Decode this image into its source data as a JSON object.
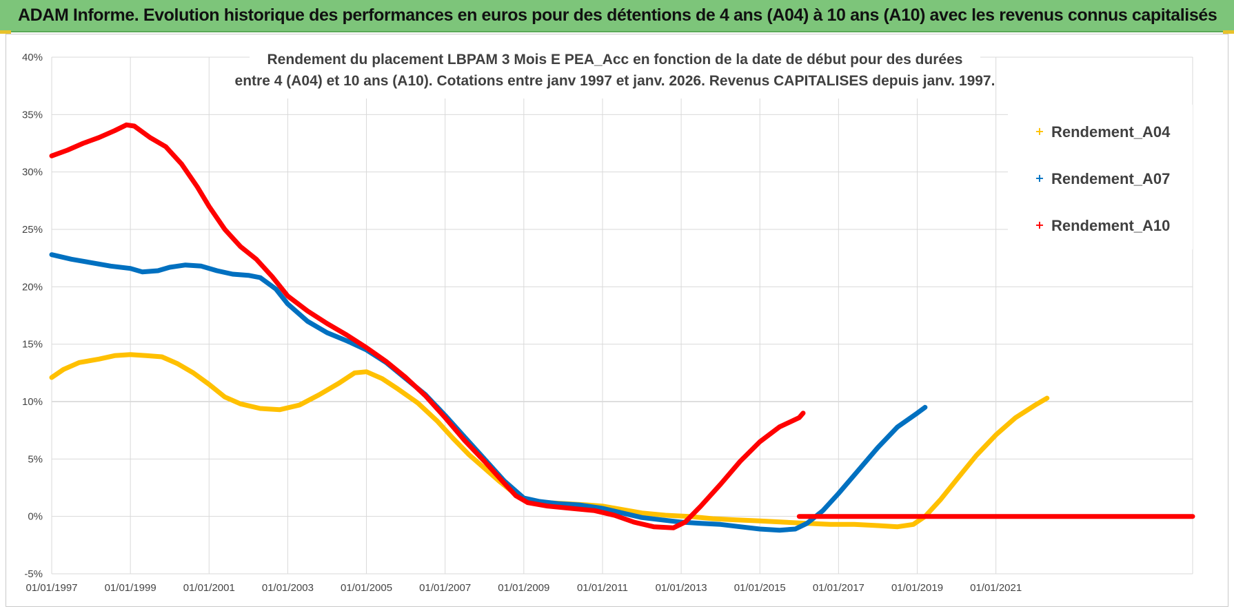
{
  "banner": {
    "title": "ADAM Informe. Evolution historique des performances en euros pour des détentions de 4 ans (A04) à 10 ans (A10) avec les revenus connus capitalisés",
    "color": "#7dc57a"
  },
  "chart_data": {
    "type": "line",
    "title_lines": [
      "Rendement du placement LBPAM 3 Mois E PEA_Acc en fonction de la date de début pour des durées",
      "entre 4 (A04) et 10 ans (A10). Cotations entre janv 1997 et janv. 2026. Revenus CAPITALISES depuis janv. 1997."
    ],
    "xlabel": "",
    "ylabel": "",
    "x_range": [
      1997.0,
      2026.0
    ],
    "ylim": [
      -5,
      40
    ],
    "grid": true,
    "legend_position": "top-right",
    "x_ticks": [
      {
        "value": 1997,
        "label": "01/01/1997"
      },
      {
        "value": 1999,
        "label": "01/01/1999"
      },
      {
        "value": 2001,
        "label": "01/01/2001"
      },
      {
        "value": 2003,
        "label": "01/01/2003"
      },
      {
        "value": 2005,
        "label": "01/01/2005"
      },
      {
        "value": 2007,
        "label": "01/01/2007"
      },
      {
        "value": 2009,
        "label": "01/01/2009"
      },
      {
        "value": 2011,
        "label": "01/01/2011"
      },
      {
        "value": 2013,
        "label": "01/01/2013"
      },
      {
        "value": 2015,
        "label": "01/01/2015"
      },
      {
        "value": 2017,
        "label": "01/01/2017"
      },
      {
        "value": 2019,
        "label": "01/01/2019"
      },
      {
        "value": 2021,
        "label": "01/01/2021"
      }
    ],
    "y_ticks": [
      {
        "value": 40,
        "label": "40%"
      },
      {
        "value": 35,
        "label": "35%"
      },
      {
        "value": 30,
        "label": "30%"
      },
      {
        "value": 25,
        "label": "25%"
      },
      {
        "value": 20,
        "label": "20%"
      },
      {
        "value": 15,
        "label": "15%"
      },
      {
        "value": 10,
        "label": "10%"
      },
      {
        "value": 5,
        "label": "5%"
      },
      {
        "value": 0,
        "label": "0%"
      },
      {
        "value": -5,
        "label": "-5%"
      }
    ],
    "series": [
      {
        "name": "Rendement_A04",
        "color": "#ffc000",
        "points": [
          [
            1997.0,
            12.1
          ],
          [
            1997.3,
            12.8
          ],
          [
            1997.7,
            13.4
          ],
          [
            1998.2,
            13.7
          ],
          [
            1998.6,
            14.0
          ],
          [
            1999.0,
            14.1
          ],
          [
            1999.4,
            14.0
          ],
          [
            1999.8,
            13.9
          ],
          [
            2000.2,
            13.3
          ],
          [
            2000.6,
            12.5
          ],
          [
            2001.0,
            11.5
          ],
          [
            2001.4,
            10.4
          ],
          [
            2001.8,
            9.8
          ],
          [
            2002.3,
            9.4
          ],
          [
            2002.8,
            9.3
          ],
          [
            2003.3,
            9.7
          ],
          [
            2003.8,
            10.6
          ],
          [
            2004.3,
            11.6
          ],
          [
            2004.7,
            12.5
          ],
          [
            2005.0,
            12.6
          ],
          [
            2005.4,
            12.0
          ],
          [
            2005.8,
            11.1
          ],
          [
            2006.3,
            9.9
          ],
          [
            2006.8,
            8.3
          ],
          [
            2007.2,
            6.8
          ],
          [
            2007.6,
            5.4
          ],
          [
            2008.0,
            4.2
          ],
          [
            2008.4,
            3.0
          ],
          [
            2008.8,
            1.9
          ],
          [
            2009.1,
            1.4
          ],
          [
            2009.6,
            1.2
          ],
          [
            2010.1,
            1.1
          ],
          [
            2010.6,
            1.0
          ],
          [
            2011.0,
            0.9
          ],
          [
            2011.5,
            0.6
          ],
          [
            2012.0,
            0.3
          ],
          [
            2012.6,
            0.1
          ],
          [
            2013.2,
            0.0
          ],
          [
            2013.8,
            -0.2
          ],
          [
            2014.4,
            -0.3
          ],
          [
            2015.0,
            -0.4
          ],
          [
            2015.6,
            -0.5
          ],
          [
            2016.2,
            -0.6
          ],
          [
            2016.8,
            -0.7
          ],
          [
            2017.4,
            -0.7
          ],
          [
            2018.0,
            -0.8
          ],
          [
            2018.5,
            -0.9
          ],
          [
            2018.9,
            -0.7
          ],
          [
            2019.2,
            0.0
          ],
          [
            2019.6,
            1.5
          ],
          [
            2020.0,
            3.2
          ],
          [
            2020.5,
            5.3
          ],
          [
            2021.0,
            7.1
          ],
          [
            2021.5,
            8.6
          ],
          [
            2022.0,
            9.7
          ],
          [
            2022.3,
            10.3
          ]
        ]
      },
      {
        "name": "Rendement_A07",
        "color": "#0070c0",
        "points": [
          [
            1997.0,
            22.8
          ],
          [
            1997.5,
            22.4
          ],
          [
            1998.0,
            22.1
          ],
          [
            1998.5,
            21.8
          ],
          [
            1999.0,
            21.6
          ],
          [
            1999.3,
            21.3
          ],
          [
            1999.7,
            21.4
          ],
          [
            2000.0,
            21.7
          ],
          [
            2000.4,
            21.9
          ],
          [
            2000.8,
            21.8
          ],
          [
            2001.2,
            21.4
          ],
          [
            2001.6,
            21.1
          ],
          [
            2002.0,
            21.0
          ],
          [
            2002.3,
            20.8
          ],
          [
            2002.7,
            19.8
          ],
          [
            2003.0,
            18.5
          ],
          [
            2003.5,
            17.0
          ],
          [
            2004.0,
            16.0
          ],
          [
            2004.5,
            15.3
          ],
          [
            2005.0,
            14.5
          ],
          [
            2005.5,
            13.4
          ],
          [
            2006.0,
            12.0
          ],
          [
            2006.5,
            10.6
          ],
          [
            2007.0,
            8.8
          ],
          [
            2007.5,
            6.9
          ],
          [
            2008.0,
            5.0
          ],
          [
            2008.5,
            3.1
          ],
          [
            2008.8,
            2.2
          ],
          [
            2009.0,
            1.6
          ],
          [
            2009.4,
            1.3
          ],
          [
            2009.9,
            1.1
          ],
          [
            2010.4,
            1.0
          ],
          [
            2011.0,
            0.7
          ],
          [
            2011.5,
            0.3
          ],
          [
            2012.0,
            -0.1
          ],
          [
            2012.5,
            -0.3
          ],
          [
            2013.0,
            -0.5
          ],
          [
            2013.5,
            -0.6
          ],
          [
            2014.0,
            -0.7
          ],
          [
            2014.5,
            -0.9
          ],
          [
            2015.0,
            -1.1
          ],
          [
            2015.5,
            -1.2
          ],
          [
            2015.9,
            -1.1
          ],
          [
            2016.2,
            -0.6
          ],
          [
            2016.6,
            0.5
          ],
          [
            2017.0,
            2.0
          ],
          [
            2017.5,
            4.0
          ],
          [
            2018.0,
            6.0
          ],
          [
            2018.5,
            7.8
          ],
          [
            2019.0,
            9.0
          ],
          [
            2019.2,
            9.5
          ]
        ]
      },
      {
        "name": "Rendement_A10",
        "color": "#ff0000",
        "points": [
          [
            1997.0,
            31.4
          ],
          [
            1997.4,
            31.9
          ],
          [
            1997.8,
            32.5
          ],
          [
            1998.2,
            33.0
          ],
          [
            1998.6,
            33.6
          ],
          [
            1998.9,
            34.1
          ],
          [
            1999.1,
            34.0
          ],
          [
            1999.5,
            33.0
          ],
          [
            1999.9,
            32.2
          ],
          [
            2000.3,
            30.7
          ],
          [
            2000.7,
            28.7
          ],
          [
            2001.0,
            27.0
          ],
          [
            2001.4,
            25.0
          ],
          [
            2001.8,
            23.5
          ],
          [
            2002.2,
            22.4
          ],
          [
            2002.6,
            20.9
          ],
          [
            2003.0,
            19.2
          ],
          [
            2003.5,
            17.9
          ],
          [
            2004.0,
            16.8
          ],
          [
            2004.5,
            15.8
          ],
          [
            2005.0,
            14.7
          ],
          [
            2005.5,
            13.5
          ],
          [
            2006.0,
            12.1
          ],
          [
            2006.5,
            10.5
          ],
          [
            2007.0,
            8.6
          ],
          [
            2007.5,
            6.6
          ],
          [
            2008.0,
            4.8
          ],
          [
            2008.5,
            2.9
          ],
          [
            2008.8,
            1.8
          ],
          [
            2009.1,
            1.2
          ],
          [
            2009.6,
            0.9
          ],
          [
            2010.2,
            0.7
          ],
          [
            2010.8,
            0.5
          ],
          [
            2011.3,
            0.1
          ],
          [
            2011.8,
            -0.5
          ],
          [
            2012.3,
            -0.9
          ],
          [
            2012.8,
            -1.0
          ],
          [
            2013.1,
            -0.5
          ],
          [
            2013.5,
            0.9
          ],
          [
            2014.0,
            2.8
          ],
          [
            2014.5,
            4.8
          ],
          [
            2015.0,
            6.5
          ],
          [
            2015.5,
            7.8
          ],
          [
            2016.0,
            8.6
          ],
          [
            2016.1,
            9.0
          ]
        ]
      },
      {
        "name": "Rendement_A10",
        "color": "#ff0000",
        "legend": false,
        "points": [
          [
            2016.0,
            0.0
          ],
          [
            2026.0,
            0.0
          ]
        ]
      }
    ]
  }
}
